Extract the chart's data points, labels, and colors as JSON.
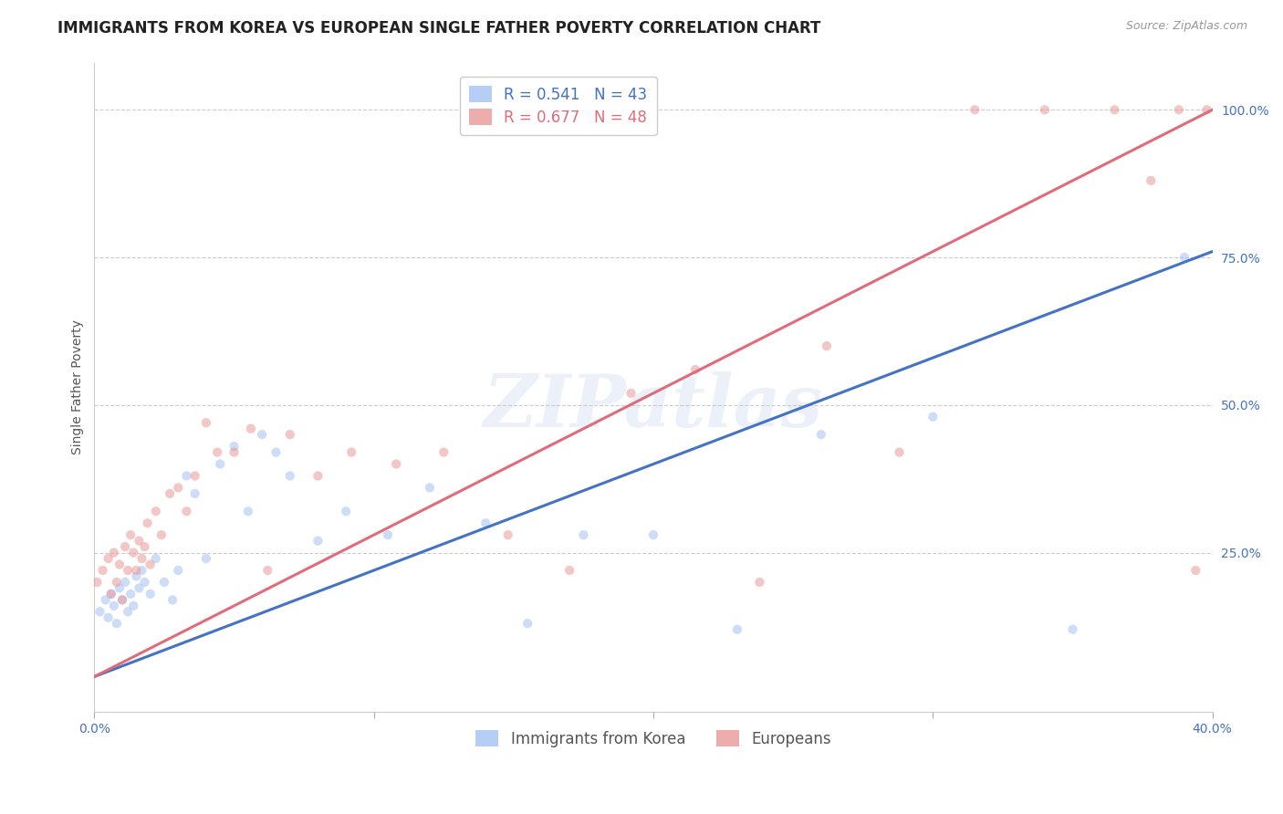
{
  "title": "IMMIGRANTS FROM KOREA VS EUROPEAN SINGLE FATHER POVERTY CORRELATION CHART",
  "source": "Source: ZipAtlas.com",
  "ylabel": "Single Father Poverty",
  "korea_R": 0.541,
  "korea_N": 43,
  "european_R": 0.677,
  "european_N": 48,
  "korea_label": "Immigrants from Korea",
  "european_label": "Europeans",
  "watermark": "ZIPatlas",
  "x_min": 0.0,
  "x_max": 0.4,
  "y_min": -0.02,
  "y_max": 1.08,
  "korea_color": "#a4c2f4",
  "european_color": "#ea9999",
  "trendline_color_korea": "#4472c4",
  "trendline_color_european": "#e06c7a",
  "background_color": "#ffffff",
  "grid_color": "#cccccc",
  "title_color": "#222222",
  "axis_label_color": "#555555",
  "tick_label_color": "#4472c4",
  "title_fontsize": 12,
  "source_fontsize": 9,
  "axis_label_fontsize": 10,
  "tick_fontsize": 10,
  "legend_fontsize": 12,
  "marker_size": 55,
  "marker_alpha": 0.55,
  "line_width": 2.2,
  "korea_scatter_x": [
    0.002,
    0.004,
    0.005,
    0.006,
    0.007,
    0.008,
    0.009,
    0.01,
    0.011,
    0.012,
    0.013,
    0.014,
    0.015,
    0.016,
    0.017,
    0.018,
    0.02,
    0.022,
    0.025,
    0.028,
    0.03,
    0.033,
    0.036,
    0.04,
    0.045,
    0.05,
    0.055,
    0.06,
    0.065,
    0.07,
    0.08,
    0.09,
    0.105,
    0.12,
    0.14,
    0.155,
    0.175,
    0.2,
    0.23,
    0.26,
    0.3,
    0.35,
    0.39
  ],
  "korea_scatter_y": [
    0.15,
    0.17,
    0.14,
    0.18,
    0.16,
    0.13,
    0.19,
    0.17,
    0.2,
    0.15,
    0.18,
    0.16,
    0.21,
    0.19,
    0.22,
    0.2,
    0.18,
    0.24,
    0.2,
    0.17,
    0.22,
    0.38,
    0.35,
    0.24,
    0.4,
    0.43,
    0.32,
    0.45,
    0.42,
    0.38,
    0.27,
    0.32,
    0.28,
    0.36,
    0.3,
    0.13,
    0.28,
    0.28,
    0.12,
    0.45,
    0.48,
    0.12,
    0.75
  ],
  "european_scatter_x": [
    0.001,
    0.003,
    0.005,
    0.006,
    0.007,
    0.008,
    0.009,
    0.01,
    0.011,
    0.012,
    0.013,
    0.014,
    0.015,
    0.016,
    0.017,
    0.018,
    0.019,
    0.02,
    0.022,
    0.024,
    0.027,
    0.03,
    0.033,
    0.036,
    0.04,
    0.044,
    0.05,
    0.056,
    0.062,
    0.07,
    0.08,
    0.092,
    0.108,
    0.125,
    0.148,
    0.17,
    0.192,
    0.215,
    0.238,
    0.262,
    0.288,
    0.315,
    0.34,
    0.365,
    0.378,
    0.388,
    0.394,
    0.398
  ],
  "european_scatter_y": [
    0.2,
    0.22,
    0.24,
    0.18,
    0.25,
    0.2,
    0.23,
    0.17,
    0.26,
    0.22,
    0.28,
    0.25,
    0.22,
    0.27,
    0.24,
    0.26,
    0.3,
    0.23,
    0.32,
    0.28,
    0.35,
    0.36,
    0.32,
    0.38,
    0.47,
    0.42,
    0.42,
    0.46,
    0.22,
    0.45,
    0.38,
    0.42,
    0.4,
    0.42,
    0.28,
    0.22,
    0.52,
    0.56,
    0.2,
    0.6,
    0.42,
    1.0,
    1.0,
    1.0,
    0.88,
    1.0,
    0.22,
    1.0
  ],
  "trendline_korea": [
    0.0,
    0.4,
    0.04,
    0.76
  ],
  "trendline_european": [
    0.0,
    0.4,
    0.04,
    1.0
  ]
}
